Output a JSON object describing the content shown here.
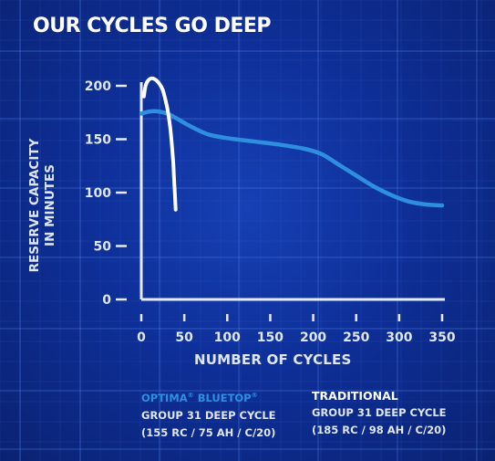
{
  "title": "OUR CYCLES GO DEEP",
  "chart_data": {
    "type": "line",
    "title": "OUR CYCLES GO DEEP",
    "ylabel_lines": [
      "RESERVE CAPACITY",
      "IN MINUTES"
    ],
    "xlabel": "NUMBER OF CYCLES",
    "xlim": [
      0,
      350
    ],
    "ylim": [
      0,
      200
    ],
    "x_ticks": [
      0,
      50,
      100,
      150,
      200,
      250,
      300,
      350
    ],
    "y_ticks": [
      0,
      50,
      100,
      150,
      200
    ],
    "grid": true,
    "series": [
      {
        "name": "OPTIMA® BLUETOP®",
        "name_main": "OPTIMA",
        "name_mid": "BLUETOP",
        "description_lines": [
          "GROUP 31 DEEP CYCLE",
          "(155 RC / 75 AH / C/20)"
        ],
        "color": "#2e8fe0",
        "x": [
          0,
          10,
          20,
          30,
          40,
          55,
          70,
          80,
          100,
          130,
          160,
          190,
          210,
          230,
          250,
          270,
          290,
          310,
          330,
          350
        ],
        "y": [
          174,
          176,
          176,
          174,
          170,
          163,
          157,
          154,
          151,
          148,
          145,
          141,
          136,
          126,
          116,
          106,
          98,
          92,
          89,
          88
        ]
      },
      {
        "name": "TRADITIONAL",
        "description_lines": [
          "GROUP 31 DEEP CYCLE",
          "(185 RC / 98 AH / C/20)"
        ],
        "color": "#ffffff",
        "x": [
          3,
          5,
          8,
          12,
          16,
          20,
          25,
          30,
          33,
          35,
          37,
          38,
          39,
          40
        ],
        "y": [
          190,
          200,
          205,
          207,
          206,
          203,
          196,
          180,
          165,
          150,
          130,
          115,
          100,
          84
        ]
      }
    ]
  }
}
